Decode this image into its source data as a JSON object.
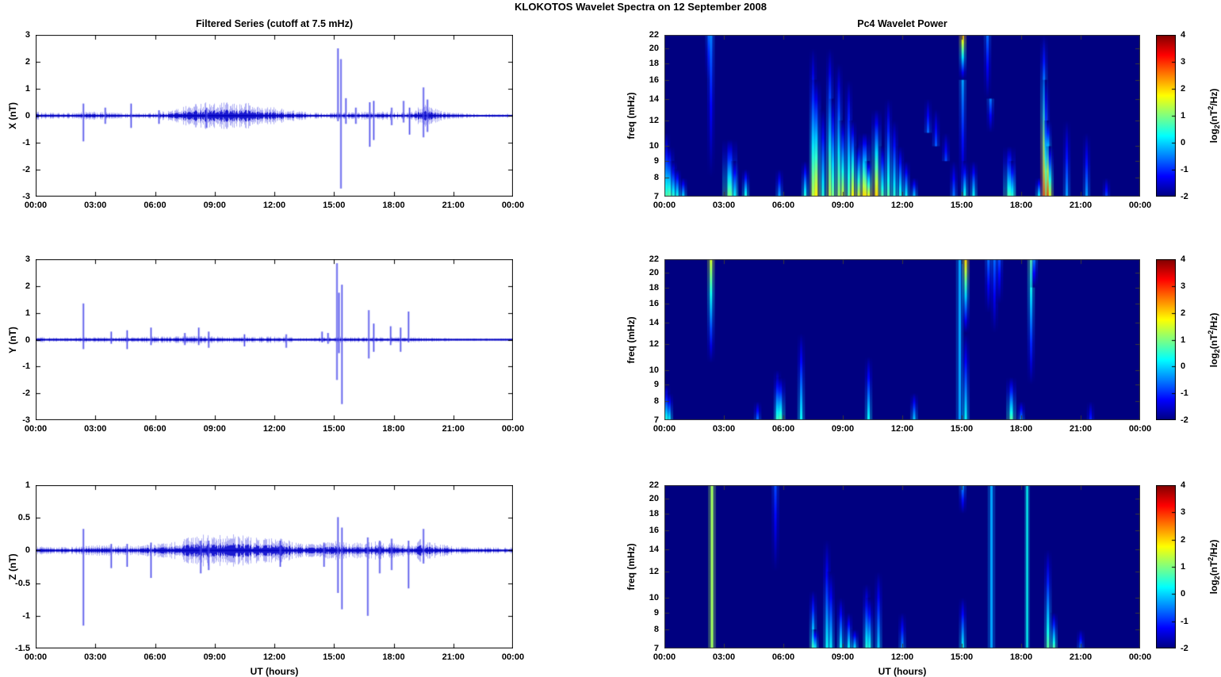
{
  "main_title": "KLOKOTOS Wavelet Spectra on 12 September 2008",
  "time_axis": {
    "xlabel": "UT (hours)",
    "ticks_hours": [
      0,
      3,
      6,
      9,
      12,
      15,
      18,
      21,
      24
    ],
    "tick_labels": [
      "00:00",
      "03:00",
      "06:00",
      "09:00",
      "12:00",
      "15:00",
      "18:00",
      "21:00",
      "00:00"
    ]
  },
  "colorbar": {
    "min": -2,
    "max": 4,
    "ticks": [
      4,
      3,
      2,
      1,
      0,
      -1,
      -2
    ],
    "label_parts": {
      "pre": "log",
      "sub": "2",
      "mid": "(nT",
      "sup": "2",
      "post": "/Hz)"
    }
  },
  "colors": {
    "trace_blue": "#0000dd",
    "trace_core": "#0000c8",
    "spectrogram_background": "#000080",
    "axis_frame": "#000000"
  },
  "chart_data": [
    {
      "id": "ts-x",
      "type": "line",
      "title": "Filtered Series (cutoff at 7.5 mHz)",
      "ylabel": "X (nT)",
      "ylim": [
        -3,
        3
      ],
      "yticks": [
        -3,
        -2,
        -1,
        0,
        1,
        2,
        3
      ],
      "x_range_hours": [
        0,
        24
      ],
      "noise_envelope": [
        [
          0,
          0.13
        ],
        [
          0.6,
          0.09
        ],
        [
          1.5,
          0.08
        ],
        [
          2.3,
          0.12
        ],
        [
          3,
          0.12
        ],
        [
          3.8,
          0.1
        ],
        [
          4.5,
          0.08
        ],
        [
          5.5,
          0.08
        ],
        [
          6,
          0.1
        ],
        [
          6.5,
          0.14
        ],
        [
          7,
          0.2
        ],
        [
          7.5,
          0.3
        ],
        [
          8,
          0.36
        ],
        [
          8.5,
          0.42
        ],
        [
          9,
          0.36
        ],
        [
          9.5,
          0.4
        ],
        [
          10,
          0.36
        ],
        [
          10.5,
          0.42
        ],
        [
          11,
          0.32
        ],
        [
          11.5,
          0.26
        ],
        [
          12,
          0.26
        ],
        [
          12.5,
          0.2
        ],
        [
          13,
          0.16
        ],
        [
          13.5,
          0.12
        ],
        [
          14,
          0.1
        ],
        [
          14.5,
          0.08
        ],
        [
          15,
          0.1
        ],
        [
          15.5,
          0.12
        ],
        [
          16,
          0.1
        ],
        [
          16.5,
          0.12
        ],
        [
          17,
          0.1
        ],
        [
          17.5,
          0.14
        ],
        [
          18,
          0.12
        ],
        [
          18.5,
          0.1
        ],
        [
          19,
          0.14
        ],
        [
          19.3,
          0.3
        ],
        [
          19.6,
          0.36
        ],
        [
          20,
          0.26
        ],
        [
          20.4,
          0.14
        ],
        [
          21,
          0.09
        ],
        [
          22,
          0.07
        ],
        [
          23,
          0.06
        ],
        [
          24,
          0.06
        ]
      ],
      "spikes": [
        [
          2.4,
          -0.95,
          0.45
        ],
        [
          3.5,
          -0.3,
          0.3
        ],
        [
          4.8,
          -0.45,
          0.45
        ],
        [
          6.2,
          -0.3,
          0.2
        ],
        [
          8.6,
          -0.45,
          0.3
        ],
        [
          15.2,
          -0.2,
          2.5
        ],
        [
          15.35,
          -2.7,
          2.1
        ],
        [
          15.6,
          -0.3,
          0.65
        ],
        [
          16.1,
          -0.3,
          0.3
        ],
        [
          16.8,
          -1.15,
          0.5
        ],
        [
          17.0,
          -0.9,
          0.55
        ],
        [
          17.9,
          -0.35,
          0.3
        ],
        [
          18.5,
          -0.25,
          0.55
        ],
        [
          18.8,
          -0.7,
          0.3
        ],
        [
          19.5,
          -0.8,
          1.05
        ],
        [
          19.7,
          -0.6,
          0.6
        ]
      ]
    },
    {
      "id": "ts-y",
      "type": "line",
      "title": "",
      "ylabel": "Y (nT)",
      "ylim": [
        -3,
        3
      ],
      "yticks": [
        -3,
        -2,
        -1,
        0,
        1,
        2,
        3
      ],
      "x_range_hours": [
        0,
        24
      ],
      "noise_envelope": [
        [
          0,
          0.09
        ],
        [
          1,
          0.06
        ],
        [
          2,
          0.06
        ],
        [
          2.5,
          0.09
        ],
        [
          3,
          0.08
        ],
        [
          4,
          0.08
        ],
        [
          5,
          0.08
        ],
        [
          6,
          0.1
        ],
        [
          7,
          0.1
        ],
        [
          8,
          0.12
        ],
        [
          9,
          0.1
        ],
        [
          10,
          0.09
        ],
        [
          11,
          0.09
        ],
        [
          12,
          0.1
        ],
        [
          12.7,
          0.09
        ],
        [
          13,
          0.06
        ],
        [
          14,
          0.06
        ],
        [
          15,
          0.1
        ],
        [
          16,
          0.08
        ],
        [
          17,
          0.08
        ],
        [
          18,
          0.08
        ],
        [
          19,
          0.08
        ],
        [
          20,
          0.06
        ],
        [
          21,
          0.04
        ],
        [
          22,
          0.04
        ],
        [
          23,
          0.04
        ],
        [
          24,
          0.05
        ]
      ],
      "spikes": [
        [
          2.4,
          -0.35,
          1.35
        ],
        [
          3.8,
          -0.15,
          0.3
        ],
        [
          4.6,
          -0.35,
          0.35
        ],
        [
          5.8,
          -0.2,
          0.45
        ],
        [
          7.5,
          -0.2,
          0.25
        ],
        [
          8.2,
          -0.2,
          0.45
        ],
        [
          8.7,
          -0.3,
          0.3
        ],
        [
          10.5,
          -0.25,
          0.2
        ],
        [
          12.6,
          -0.3,
          0.2
        ],
        [
          14.4,
          -0.1,
          0.3
        ],
        [
          14.7,
          -0.15,
          0.25
        ],
        [
          15.15,
          -1.5,
          2.85
        ],
        [
          15.25,
          -0.5,
          1.75
        ],
        [
          15.4,
          -2.4,
          2.05
        ],
        [
          16.75,
          -0.7,
          1.1
        ],
        [
          17.0,
          -0.45,
          0.6
        ],
        [
          17.85,
          -0.2,
          0.5
        ],
        [
          18.35,
          -0.45,
          0.45
        ],
        [
          18.75,
          -0.1,
          1.05
        ]
      ]
    },
    {
      "id": "ts-z",
      "type": "line",
      "title": "",
      "ylabel": "Z (nT)",
      "ylim": [
        -1.5,
        1
      ],
      "yticks": [
        -1.5,
        -1,
        -0.5,
        0,
        0.5,
        1
      ],
      "x_range_hours": [
        0,
        24
      ],
      "noise_envelope": [
        [
          0,
          0.05
        ],
        [
          1,
          0.04
        ],
        [
          2,
          0.05
        ],
        [
          2.6,
          0.06
        ],
        [
          3.5,
          0.07
        ],
        [
          4,
          0.06
        ],
        [
          5,
          0.06
        ],
        [
          6,
          0.08
        ],
        [
          6.5,
          0.1
        ],
        [
          7,
          0.12
        ],
        [
          7.5,
          0.15
        ],
        [
          8,
          0.18
        ],
        [
          8.5,
          0.2
        ],
        [
          9,
          0.18
        ],
        [
          9.5,
          0.2
        ],
        [
          10,
          0.2
        ],
        [
          10.5,
          0.18
        ],
        [
          11,
          0.16
        ],
        [
          11.5,
          0.15
        ],
        [
          12,
          0.15
        ],
        [
          12.5,
          0.15
        ],
        [
          13,
          0.1
        ],
        [
          13.5,
          0.09
        ],
        [
          14,
          0.08
        ],
        [
          14.5,
          0.1
        ],
        [
          15,
          0.12
        ],
        [
          15.5,
          0.1
        ],
        [
          16,
          0.1
        ],
        [
          16.5,
          0.1
        ],
        [
          17,
          0.12
        ],
        [
          17.5,
          0.1
        ],
        [
          18,
          0.1
        ],
        [
          18.5,
          0.08
        ],
        [
          19,
          0.1
        ],
        [
          19.4,
          0.15
        ],
        [
          19.7,
          0.12
        ],
        [
          20,
          0.1
        ],
        [
          21,
          0.05
        ],
        [
          22,
          0.04
        ],
        [
          23,
          0.04
        ],
        [
          24,
          0.04
        ]
      ],
      "spikes": [
        [
          2.4,
          -1.15,
          0.33
        ],
        [
          3.8,
          -0.27,
          0.1
        ],
        [
          4.6,
          -0.25,
          0.1
        ],
        [
          5.8,
          -0.42,
          0.12
        ],
        [
          8.3,
          -0.35,
          0.15
        ],
        [
          8.7,
          -0.3,
          0.15
        ],
        [
          12.3,
          -0.25,
          0.15
        ],
        [
          14.5,
          -0.25,
          0.12
        ],
        [
          15.2,
          -0.65,
          0.51
        ],
        [
          15.4,
          -0.9,
          0.35
        ],
        [
          16.7,
          -1.0,
          0.2
        ],
        [
          17.3,
          -0.35,
          0.15
        ],
        [
          17.9,
          -0.3,
          0.18
        ],
        [
          18.75,
          -0.58,
          0.15
        ],
        [
          19.5,
          -0.2,
          0.33
        ]
      ]
    },
    {
      "id": "wav-x",
      "type": "heatmap",
      "title": "Pc4 Wavelet Power",
      "ylabel": "freq (mHz)",
      "yscale": "log",
      "freq_range_mhz": [
        7,
        22
      ],
      "yticks": [
        7,
        8,
        9,
        10,
        12,
        14,
        16,
        18,
        20,
        22
      ],
      "power_range_log2": [
        -2,
        4
      ],
      "background_value": -2,
      "streaks": [
        [
          0.1,
          7,
          11,
          0.6
        ],
        [
          0.25,
          7,
          10,
          0.9,
          4
        ],
        [
          0.45,
          7,
          9,
          0.6
        ],
        [
          0.65,
          7,
          8.5,
          0.4
        ],
        [
          0.95,
          7,
          8,
          0.1
        ],
        [
          2.25,
          22,
          16,
          -0.7
        ],
        [
          2.35,
          22,
          8,
          -0.5
        ],
        [
          3.3,
          7,
          10.5,
          1.0,
          6
        ],
        [
          3.55,
          7,
          9,
          0.3
        ],
        [
          4.1,
          7,
          8.5,
          0.5
        ],
        [
          5.8,
          7,
          8.5,
          -0.2
        ],
        [
          7.1,
          7,
          9,
          0.5
        ],
        [
          7.5,
          7,
          20,
          1.2
        ],
        [
          7.65,
          7,
          16,
          1.8,
          4
        ],
        [
          8.0,
          7,
          13,
          0.5
        ],
        [
          8.35,
          7,
          20,
          1.5
        ],
        [
          8.5,
          7,
          14,
          1.0
        ],
        [
          8.8,
          7,
          18,
          1.2
        ],
        [
          9.0,
          7,
          12,
          1.5
        ],
        [
          9.3,
          7,
          16,
          0.8
        ],
        [
          9.5,
          7,
          12,
          1.8
        ],
        [
          9.8,
          7,
          10,
          1.5
        ],
        [
          10.1,
          7,
          11,
          2.0,
          5
        ],
        [
          10.3,
          7,
          9,
          1.8
        ],
        [
          10.7,
          7,
          13,
          2.0,
          4
        ],
        [
          11.0,
          7,
          10,
          0.8
        ],
        [
          11.3,
          7,
          14,
          0.8
        ],
        [
          11.6,
          7,
          12,
          0.5
        ],
        [
          11.9,
          7,
          10,
          0.5
        ],
        [
          12.2,
          7,
          9,
          0.3
        ],
        [
          12.6,
          7,
          8,
          0.0
        ],
        [
          13.3,
          11,
          14,
          -0.6
        ],
        [
          13.7,
          10,
          13,
          -0.7
        ],
        [
          14.2,
          9,
          11,
          -0.8
        ],
        [
          14.6,
          7,
          9,
          -0.5
        ],
        [
          15.05,
          22,
          16,
          2.2
        ],
        [
          15.05,
          16,
          7,
          -0.3
        ],
        [
          15.15,
          7,
          9,
          0.5
        ],
        [
          15.6,
          7,
          9,
          0.3
        ],
        [
          16.3,
          22,
          14,
          -0.6
        ],
        [
          16.45,
          14,
          11,
          -0.5
        ],
        [
          17.4,
          7,
          10,
          0.8,
          5
        ],
        [
          17.55,
          7,
          9,
          0.5
        ],
        [
          18.9,
          7,
          8,
          0.3
        ],
        [
          19.15,
          7,
          22,
          3.2
        ],
        [
          19.25,
          7,
          16,
          1.0
        ],
        [
          19.35,
          7,
          12,
          3.5
        ],
        [
          19.45,
          7,
          10,
          1.5
        ],
        [
          20.3,
          7,
          12,
          -0.3
        ],
        [
          21.3,
          7,
          11,
          -0.3
        ],
        [
          22.3,
          7,
          8,
          -0.8
        ]
      ]
    },
    {
      "id": "wav-y",
      "type": "heatmap",
      "title": "",
      "ylabel": "freq (mHz)",
      "yscale": "log",
      "freq_range_mhz": [
        7,
        22
      ],
      "yticks": [
        7,
        8,
        9,
        10,
        12,
        14,
        16,
        18,
        20,
        22
      ],
      "power_range_log2": [
        -2,
        4
      ],
      "background_value": -2,
      "streaks": [
        [
          0.1,
          7,
          9,
          0.5
        ],
        [
          0.25,
          7,
          8.5,
          0.3
        ],
        [
          2.35,
          22,
          10.5,
          1.5
        ],
        [
          4.7,
          7,
          8,
          -0.5
        ],
        [
          5.7,
          7,
          10,
          0.5
        ],
        [
          5.85,
          7,
          9.5,
          0.8,
          4
        ],
        [
          6.9,
          7,
          13,
          0.3
        ],
        [
          10.3,
          7,
          11,
          0.3
        ],
        [
          12.6,
          7,
          8.5,
          0.0
        ],
        [
          14.9,
          22,
          7,
          -0.3,
          3,
          "s"
        ],
        [
          15.2,
          22,
          13,
          2.0
        ],
        [
          15.2,
          7,
          13,
          0.3
        ],
        [
          16.35,
          22,
          15,
          -0.6
        ],
        [
          16.65,
          22,
          13,
          -0.6
        ],
        [
          16.9,
          22,
          16,
          -0.8
        ],
        [
          17.5,
          7,
          9.5,
          0.8,
          4
        ],
        [
          18.0,
          7,
          8,
          -0.3
        ],
        [
          18.5,
          22,
          9,
          0.9
        ],
        [
          18.65,
          22,
          18,
          -0.5
        ],
        [
          21.5,
          7,
          8,
          -1.0
        ]
      ]
    },
    {
      "id": "wav-z",
      "type": "heatmap",
      "title": "",
      "ylabel": "freq (mHz)",
      "yscale": "log",
      "freq_range_mhz": [
        7,
        22
      ],
      "yticks": [
        7,
        8,
        9,
        10,
        12,
        14,
        16,
        18,
        20,
        22
      ],
      "power_range_log2": [
        -2,
        4
      ],
      "background_value": -2,
      "streaks": [
        [
          2.4,
          22,
          7,
          1.2,
          3,
          "s"
        ],
        [
          5.6,
          22,
          12,
          -0.8
        ],
        [
          7.5,
          7,
          10.5,
          0.8
        ],
        [
          7.6,
          7,
          8,
          0.3
        ],
        [
          8.2,
          7,
          15,
          0.3
        ],
        [
          8.4,
          7,
          12,
          0.2
        ],
        [
          8.9,
          7,
          10,
          0.3
        ],
        [
          9.3,
          7,
          9,
          0.3
        ],
        [
          9.6,
          7,
          8,
          0.2
        ],
        [
          10.2,
          7,
          11,
          0.5
        ],
        [
          10.35,
          7,
          10,
          0.4
        ],
        [
          10.8,
          7,
          12,
          0.0
        ],
        [
          12.0,
          7,
          9,
          -0.3
        ],
        [
          15.05,
          7,
          10,
          0.3
        ],
        [
          15.05,
          22,
          18,
          -0.3
        ],
        [
          16.5,
          22,
          7,
          -0.3,
          3,
          "s"
        ],
        [
          18.3,
          22,
          7,
          0.3,
          2,
          "s"
        ],
        [
          19.35,
          7,
          14,
          0.8
        ],
        [
          19.65,
          7,
          9,
          0.8
        ],
        [
          21.0,
          7,
          8,
          -0.5
        ]
      ]
    }
  ]
}
